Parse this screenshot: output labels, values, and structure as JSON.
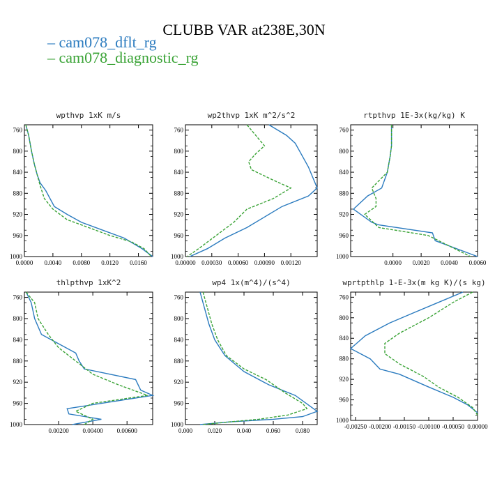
{
  "title": "CLUBB VAR at238E,30N",
  "legend": [
    {
      "label": "cam078_dflt_rg",
      "color": "#2b7bbf",
      "dash": "solid"
    },
    {
      "label": "cam078_diagnostic_rg",
      "color": "#3aa336",
      "dash": "dashed"
    }
  ],
  "chart_data": [
    {
      "type": "line",
      "title": "wpthvp   1xK m/s",
      "xlim": [
        0.0,
        0.018
      ],
      "ylim": [
        1000,
        750
      ],
      "xticks": [
        0.0,
        0.004,
        0.008,
        0.012,
        0.016
      ],
      "xtick_labels": [
        "0.0000",
        "0.0040",
        "0.0080",
        "0.0120",
        "0.0160"
      ],
      "yticks": [
        760,
        800,
        840,
        880,
        920,
        960,
        1000
      ],
      "series": [
        {
          "name": "cam078_dflt_rg",
          "x": [
            0.0002,
            0.0006,
            0.001,
            0.0014,
            0.0018,
            0.0022,
            0.003,
            0.0042,
            0.006,
            0.008,
            0.011,
            0.014,
            0.0165,
            0.018
          ],
          "y": [
            750,
            770,
            800,
            825,
            845,
            860,
            875,
            905,
            920,
            935,
            950,
            965,
            985,
            1000
          ]
        },
        {
          "name": "cam078_diagnostic_rg",
          "x": [
            0.0002,
            0.0006,
            0.001,
            0.0014,
            0.0018,
            0.0022,
            0.0028,
            0.004,
            0.006,
            0.009,
            0.012,
            0.015,
            0.0168,
            0.0178
          ],
          "y": [
            750,
            770,
            800,
            825,
            845,
            865,
            890,
            910,
            930,
            945,
            960,
            972,
            985,
            1000
          ]
        }
      ]
    },
    {
      "type": "line",
      "title": "wp2thvp   1xK m^2/s^2",
      "xlim": [
        0.0,
        0.0015
      ],
      "ylim": [
        1000,
        750
      ],
      "xticks": [
        0.0,
        0.0003,
        0.0006,
        0.0009,
        0.0012
      ],
      "xtick_labels": [
        "0.00000",
        "0.00030",
        "0.00060",
        "0.00090",
        "0.00120"
      ],
      "yticks": [
        760,
        800,
        840,
        880,
        920,
        960,
        1000
      ],
      "series": [
        {
          "name": "cam078_dflt_rg",
          "x": [
            0.00095,
            0.00115,
            0.00125,
            0.0013,
            0.0014,
            0.00145,
            0.0015,
            0.0014,
            0.0011,
            0.0009,
            0.0007,
            0.00045,
            0.00025,
            5e-05
          ],
          "y": [
            750,
            770,
            785,
            800,
            830,
            850,
            870,
            885,
            905,
            925,
            945,
            965,
            985,
            1000
          ]
        },
        {
          "name": "cam078_diagnostic_rg",
          "x": [
            0.0007,
            0.0008,
            0.0009,
            0.0008,
            0.00072,
            0.00075,
            0.001,
            0.0012,
            0.001,
            0.0007,
            0.00055,
            0.00035,
            0.00015,
            2e-05
          ],
          "y": [
            750,
            770,
            790,
            805,
            820,
            835,
            855,
            870,
            890,
            910,
            935,
            960,
            985,
            1000
          ]
        }
      ]
    },
    {
      "type": "line",
      "title": "rtpthvp   1E-3x(kg/kg) K",
      "xlim": [
        -0.003,
        0.006
      ],
      "ylim": [
        1000,
        750
      ],
      "xticks": [
        0.0,
        0.002,
        0.004,
        0.006
      ],
      "xtick_labels": [
        "0.0000",
        "0.0020",
        "0.0040",
        "0.0060"
      ],
      "yticks": [
        760,
        800,
        840,
        880,
        920,
        960,
        1000
      ],
      "series": [
        {
          "name": "cam078_dflt_rg",
          "x": [
            -0.0001,
            -0.0001,
            -0.0002,
            -0.0004,
            -0.0008,
            -0.0018,
            -0.0028,
            -0.0015,
            -0.001,
            0.0028,
            0.003,
            0.006
          ],
          "y": [
            750,
            790,
            810,
            840,
            870,
            885,
            910,
            935,
            940,
            955,
            970,
            1000
          ]
        },
        {
          "name": "cam078_diagnostic_rg",
          "x": [
            -0.0001,
            -0.0001,
            -0.0002,
            -0.0004,
            -0.0015,
            -0.0012,
            -0.0012,
            -0.002,
            -0.001,
            0.0025,
            0.0055
          ],
          "y": [
            750,
            790,
            810,
            840,
            870,
            890,
            905,
            920,
            945,
            960,
            1000
          ]
        }
      ]
    },
    {
      "type": "line",
      "title": "thlpthvp   1xK^2",
      "xlim": [
        0.0,
        0.0075
      ],
      "ylim": [
        1000,
        750
      ],
      "xticks": [
        0.002,
        0.004,
        0.006
      ],
      "xtick_labels": [
        "0.00200",
        "0.00400",
        "0.00600"
      ],
      "yticks": [
        760,
        800,
        840,
        880,
        920,
        960,
        1000
      ],
      "series": [
        {
          "name": "cam078_dflt_rg",
          "x": [
            0.0001,
            0.0004,
            0.0006,
            0.001,
            0.003,
            0.0032,
            0.0035,
            0.0065,
            0.0068,
            0.0075,
            0.0025,
            0.0026,
            0.0045,
            0.0028
          ],
          "y": [
            750,
            770,
            800,
            830,
            865,
            880,
            895,
            915,
            935,
            945,
            970,
            980,
            990,
            1000
          ]
        },
        {
          "name": "cam078_diagnostic_rg",
          "x": [
            0.0001,
            0.0006,
            0.0008,
            0.0014,
            0.002,
            0.003,
            0.004,
            0.0055,
            0.0072,
            0.004,
            0.003,
            0.004,
            0.0035
          ],
          "y": [
            750,
            770,
            800,
            830,
            855,
            880,
            905,
            925,
            945,
            960,
            975,
            990,
            1000
          ]
        }
      ]
    },
    {
      "type": "line",
      "title": "wp4   1x(m^4)/(s^4)",
      "xlim": [
        0.0,
        0.09
      ],
      "ylim": [
        1000,
        750
      ],
      "xticks": [
        0.0,
        0.02,
        0.04,
        0.06,
        0.08
      ],
      "xtick_labels": [
        "0.000",
        "0.020",
        "0.040",
        "0.060",
        "0.080"
      ],
      "yticks": [
        760,
        800,
        840,
        880,
        920,
        960,
        1000
      ],
      "series": [
        {
          "name": "cam078_dflt_rg",
          "x": [
            0.01,
            0.013,
            0.016,
            0.02,
            0.027,
            0.04,
            0.057,
            0.075,
            0.085,
            0.09,
            0.08,
            0.06,
            0.03,
            0.01
          ],
          "y": [
            750,
            780,
            810,
            840,
            870,
            900,
            925,
            945,
            965,
            975,
            985,
            990,
            995,
            1000
          ]
        },
        {
          "name": "cam078_diagnostic_rg",
          "x": [
            0.012,
            0.015,
            0.018,
            0.022,
            0.028,
            0.04,
            0.055,
            0.068,
            0.08,
            0.083,
            0.07,
            0.05,
            0.03,
            0.012
          ],
          "y": [
            750,
            780,
            810,
            840,
            870,
            895,
            915,
            940,
            960,
            970,
            982,
            990,
            995,
            1000
          ]
        }
      ]
    },
    {
      "type": "line",
      "title": "wprtpthlp   1-E-3x(m kg K)/(s kg)",
      "xlim": [
        -0.0026,
        0.0
      ],
      "ylim": [
        1000,
        750
      ],
      "xticks": [
        -0.0025,
        -0.002,
        -0.0015,
        -0.001,
        -0.0005,
        0.0
      ],
      "xtick_labels": [
        "-0.00250",
        "-0.00200",
        "-0.00150",
        "-0.00100",
        "-0.00050",
        "0.00000"
      ],
      "yticks": [
        760,
        800,
        840,
        880,
        920,
        960,
        1000
      ],
      "series": [
        {
          "name": "cam078_dflt_rg",
          "x": [
            -0.0003,
            -0.0008,
            -0.0013,
            -0.0018,
            -0.0023,
            -0.0026,
            -0.0022,
            -0.0021,
            -0.002,
            -0.0016,
            -0.001,
            -0.0005,
            -0.0002,
            0.0
          ],
          "y": [
            750,
            770,
            790,
            810,
            835,
            860,
            880,
            890,
            900,
            910,
            935,
            955,
            970,
            985
          ]
        },
        {
          "name": "cam078_diagnostic_rg",
          "x": [
            -0.0001,
            -0.0005,
            -0.001,
            -0.0016,
            -0.0019,
            -0.0019,
            -0.0016,
            -0.0011,
            -0.0008,
            -0.0004,
            -0.0001,
            0.0
          ],
          "y": [
            750,
            770,
            800,
            830,
            850,
            870,
            890,
            915,
            935,
            955,
            975,
            990
          ]
        }
      ]
    }
  ]
}
